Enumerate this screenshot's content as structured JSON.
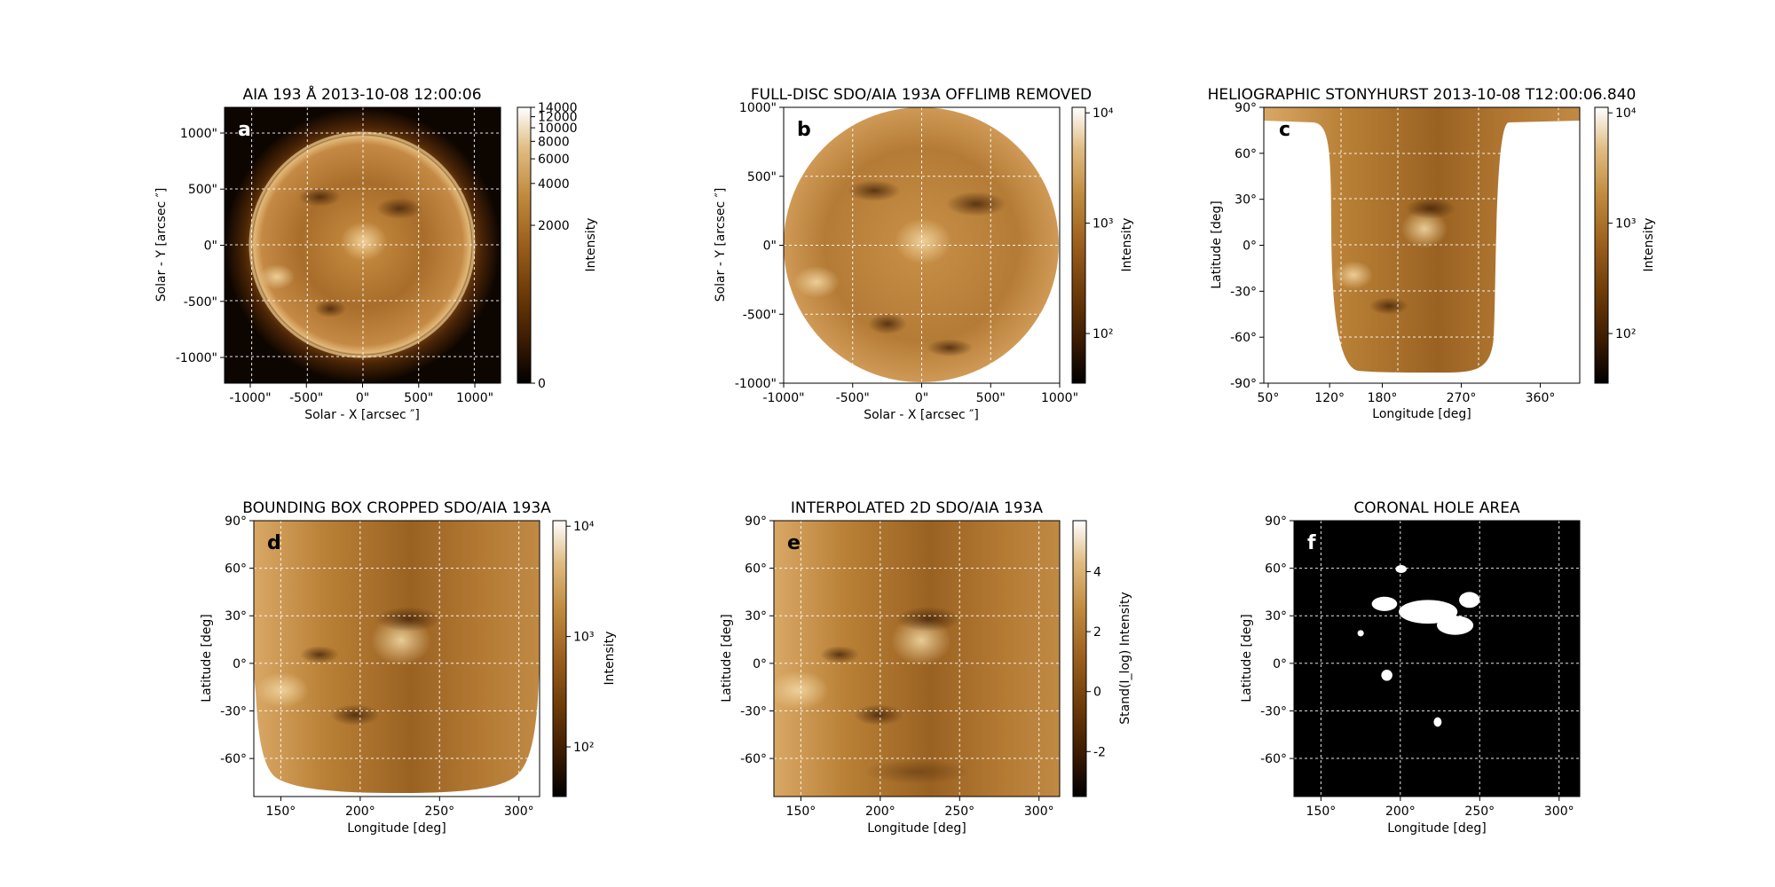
{
  "figure": {
    "colormap": [
      "#000000",
      "#3a1a02",
      "#6b3a08",
      "#9a5e1c",
      "#c08a3e",
      "#e0bc82",
      "#ffffff"
    ]
  },
  "chart_data": [
    {
      "type": "heatmap",
      "panel": "a",
      "title": "AIA 193 Å 2013-10-08 12:00:06",
      "xlabel": "Solar - X [arcsec ″]",
      "ylabel": "Solar - Y [arcsec ″]",
      "xticks": [
        "-1000\"",
        "-500\"",
        "0\"",
        "500\"",
        "1000\""
      ],
      "yticks": [
        "-1000\"",
        "-500\"",
        "0\"",
        "500\"",
        "1000\""
      ],
      "xlim": [
        -1229,
        1229
      ],
      "ylim": [
        -1229,
        1229
      ],
      "grid": true,
      "colorbar": {
        "label": "Intensity",
        "scale": "asinh",
        "ticks": [
          "0",
          "2000",
          "4000",
          "6000",
          "8000",
          "10000",
          "12000",
          "14000"
        ]
      }
    },
    {
      "type": "heatmap",
      "panel": "b",
      "title": "FULL-DISC SDO/AIA 193A OFFLIMB REMOVED",
      "xlabel": "Solar - X [arcsec ″]",
      "ylabel": "Solar - Y [arcsec ″]",
      "xticks": [
        "-1000\"",
        "-500\"",
        "0\"",
        "500\"",
        "1000\""
      ],
      "yticks": [
        "-1000\"",
        "-500\"",
        "0\"",
        "500\"",
        "1000\""
      ],
      "xlim": [
        -1000,
        1000
      ],
      "ylim": [
        -1000,
        1000
      ],
      "grid": true,
      "colorbar": {
        "label": "Intensity",
        "scale": "log",
        "ticks": [
          "10²",
          "10³",
          "10⁴"
        ]
      }
    },
    {
      "type": "heatmap",
      "panel": "c",
      "title": "HELIOGRAPHIC STONYHURST 2013-10-08 T12:00:06.840",
      "xlabel": "Longitude [deg]",
      "ylabel": "Latitude [deg]",
      "xticks": [
        "50°",
        "120°",
        "180°",
        "270°",
        "360°"
      ],
      "yticks": [
        "-90°",
        "-60°",
        "-30°",
        "0°",
        "30°",
        "60°",
        "90°"
      ],
      "xlim": [
        45,
        405
      ],
      "ylim": [
        -90,
        90
      ],
      "grid": true,
      "colorbar": {
        "label": "Intensity",
        "scale": "log",
        "ticks": [
          "10²",
          "10³",
          "10⁴"
        ]
      }
    },
    {
      "type": "heatmap",
      "panel": "d",
      "title": "BOUNDING BOX CROPPED SDO/AIA 193A",
      "xlabel": "Longitude [deg]",
      "ylabel": "Latitude [deg]",
      "xticks": [
        "150°",
        "200°",
        "250°",
        "300°"
      ],
      "yticks": [
        "-60°",
        "-30°",
        "0°",
        "30°",
        "60°",
        "90°"
      ],
      "xlim": [
        133,
        313
      ],
      "ylim": [
        -84,
        90
      ],
      "grid": true,
      "colorbar": {
        "label": "Intensity",
        "scale": "log",
        "ticks": [
          "10²",
          "10³",
          "10⁴"
        ]
      }
    },
    {
      "type": "heatmap",
      "panel": "e",
      "title": "INTERPOLATED 2D SDO/AIA 193A",
      "xlabel": "Longitude [deg]",
      "ylabel": "Latitude [deg]",
      "xticks": [
        "150°",
        "200°",
        "250°",
        "300°"
      ],
      "yticks": [
        "-60°",
        "-30°",
        "0°",
        "30°",
        "60°",
        "90°"
      ],
      "xlim": [
        133,
        313
      ],
      "ylim": [
        -84,
        90
      ],
      "grid": true,
      "colorbar": {
        "label": "Stand(I_log) Intensity",
        "scale": "linear",
        "range": [
          -3.5,
          5.7
        ],
        "ticks": [
          "-2",
          "0",
          "2",
          "4"
        ]
      }
    },
    {
      "type": "heatmap",
      "panel": "f",
      "title": "CORONAL HOLE AREA",
      "xlabel": "Longitude [deg]",
      "ylabel": "Latitude [deg]",
      "xticks": [
        "150°",
        "200°",
        "250°",
        "300°"
      ],
      "yticks": [
        "-60°",
        "-30°",
        "0°",
        "30°",
        "60°",
        "90°"
      ],
      "xlim": [
        133,
        313
      ],
      "ylim": [
        -84,
        90
      ],
      "grid": true,
      "mask_regions": [
        {
          "lon": [
            182,
            198
          ],
          "lat": [
            33,
            42
          ]
        },
        {
          "lon": [
            199,
            236
          ],
          "lat": [
            25,
            40
          ]
        },
        {
          "lon": [
            223,
            246
          ],
          "lat": [
            18,
            30
          ]
        },
        {
          "lon": [
            237,
            250
          ],
          "lat": [
            35,
            45
          ]
        },
        {
          "lon": [
            197,
            204
          ],
          "lat": [
            57,
            62
          ]
        },
        {
          "lon": [
            221,
            226
          ],
          "lat": [
            -40,
            -34
          ]
        },
        {
          "lon": [
            188,
            195
          ],
          "lat": [
            -11,
            -4
          ]
        },
        {
          "lon": [
            173,
            177
          ],
          "lat": [
            17,
            21
          ]
        }
      ]
    }
  ]
}
